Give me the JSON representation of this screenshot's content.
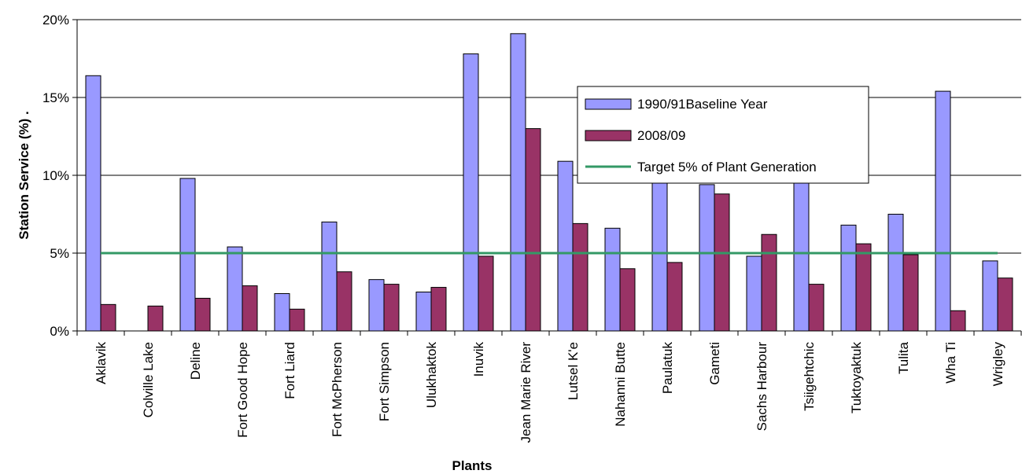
{
  "chart_data": {
    "type": "bar",
    "title": "",
    "xlabel": "Plants",
    "ylabel": "Station Service (%) .",
    "ylim": [
      0,
      20
    ],
    "yticks": [
      "0%",
      "5%",
      "10%",
      "15%",
      "20%"
    ],
    "ytick_values": [
      0,
      5,
      10,
      15,
      20
    ],
    "grid": true,
    "legend_position": "upper-right inside plot",
    "categories": [
      "Aklavik",
      "Colville Lake",
      "Deline",
      "Fort Good Hope",
      "Fort Liard",
      "Fort McPherson",
      "Fort Simpson",
      "Ulukhaktok",
      "Inuvik",
      "Jean Marie River",
      "Lutsel K'e",
      "Nahanni Butte",
      "Paulatuk",
      "Gameti",
      "Sachs Harbour",
      "Tsiigehtchic",
      "Tuktoyaktuk",
      "Tulita",
      "Wha Ti",
      "Wrigley"
    ],
    "series": [
      {
        "name": "1990/91Baseline Year",
        "color": "#9999ff",
        "values": [
          16.4,
          null,
          9.8,
          5.4,
          2.4,
          7.0,
          3.3,
          2.5,
          17.8,
          19.1,
          10.9,
          6.6,
          10.0,
          9.4,
          4.8,
          10.0,
          6.8,
          7.5,
          15.4,
          4.5
        ]
      },
      {
        "name": "2008/09",
        "color": "#993366",
        "values": [
          1.7,
          1.6,
          2.1,
          2.9,
          1.4,
          3.8,
          3.0,
          2.8,
          4.8,
          13.0,
          6.9,
          4.0,
          4.4,
          8.8,
          6.2,
          3.0,
          5.6,
          4.9,
          1.3,
          3.4
        ]
      }
    ],
    "target_line": {
      "name": "Target 5% of Plant Generation",
      "value": 5,
      "color": "#339966"
    }
  }
}
